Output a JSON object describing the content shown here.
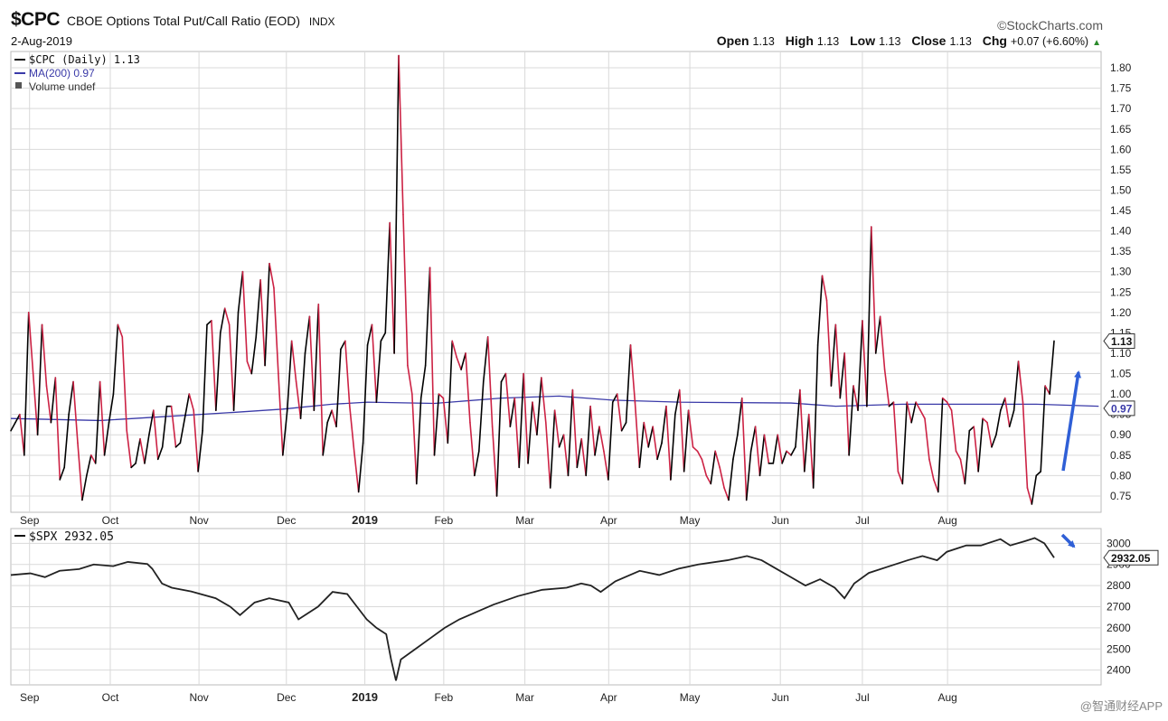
{
  "header": {
    "symbol": "$CPC",
    "description": "CBOE Options Total Put/Call Ratio (EOD)",
    "exchange": "INDX",
    "date": "2-Aug-2019",
    "brand": "©StockCharts.com",
    "open_label": "Open",
    "open": "1.13",
    "high_label": "High",
    "high": "1.13",
    "low_label": "Low",
    "low": "1.13",
    "close_label": "Close",
    "close": "1.13",
    "chg_label": "Chg",
    "chg": "+0.07 (+6.60%)",
    "chg_arrow": "▲"
  },
  "watermark": "@智通财经APP",
  "colors": {
    "up": "#000000",
    "down": "#cc2244",
    "ma": "#3a3aa8",
    "arrow": "#2f5fd6",
    "grid": "#d9d9d9"
  },
  "chart_data": [
    {
      "type": "line",
      "panel": "upper",
      "title": "$CPC CBOE Options Total Put/Call Ratio (EOD)",
      "legend": [
        "$CPC (Daily) 1.13",
        "MA(200) 0.97",
        "Volume undef"
      ],
      "legend_placement": "top-left",
      "x_tick_labels": [
        "Sep",
        "Oct",
        "Nov",
        "Dec",
        "2019",
        "Feb",
        "Mar",
        "Apr",
        "May",
        "Jun",
        "Jul",
        "Aug"
      ],
      "x_ticks": [
        4.2,
        22.3,
        42.2,
        61.8,
        79.4,
        97.1,
        115.3,
        134.1,
        152.3,
        172.6,
        191.0,
        210.1
      ],
      "y_ticks": [
        "1.80",
        "1.75",
        "1.70",
        "1.65",
        "1.60",
        "1.55",
        "1.50",
        "1.45",
        "1.40",
        "1.35",
        "1.30",
        "1.25",
        "1.20",
        "1.15",
        "1.10",
        "1.05",
        "1.00",
        "0.95",
        "0.90",
        "0.85",
        "0.80",
        "0.75"
      ],
      "ylim": [
        0.71,
        1.84
      ],
      "grid": true,
      "last_value_label": "1.13",
      "ma_value_label": "0.97",
      "series": [
        {
          "name": "$CPC (Daily)",
          "style": "up-down colored",
          "values": [
            0.91,
            0.93,
            0.95,
            0.85,
            1.2,
            1.05,
            0.9,
            1.17,
            1.02,
            0.93,
            1.04,
            0.79,
            0.82,
            0.95,
            1.03,
            0.88,
            0.74,
            0.8,
            0.85,
            0.83,
            1.03,
            0.85,
            0.93,
            1.0,
            1.17,
            1.14,
            0.91,
            0.82,
            0.83,
            0.89,
            0.83,
            0.9,
            0.96,
            0.84,
            0.87,
            0.97,
            0.97,
            0.87,
            0.88,
            0.94,
            1.0,
            0.96,
            0.81,
            0.91,
            1.17,
            1.18,
            0.96,
            1.15,
            1.21,
            1.17,
            0.96,
            1.2,
            1.3,
            1.08,
            1.05,
            1.14,
            1.28,
            1.07,
            1.32,
            1.26,
            1.05,
            0.85,
            0.96,
            1.13,
            1.03,
            0.94,
            1.1,
            1.19,
            0.96,
            1.22,
            0.85,
            0.93,
            0.96,
            0.92,
            1.11,
            1.13,
            0.97,
            0.86,
            0.76,
            0.88,
            1.12,
            1.17,
            0.98,
            1.13,
            1.15,
            1.42,
            1.1,
            1.83,
            1.44,
            1.07,
            1.0,
            0.78,
            0.99,
            1.07,
            1.31,
            0.85,
            1.0,
            0.99,
            0.88,
            1.13,
            1.09,
            1.06,
            1.1,
            0.93,
            0.8,
            0.86,
            1.03,
            1.14,
            0.92,
            0.75,
            1.03,
            1.05,
            0.92,
            0.99,
            0.82,
            1.05,
            0.83,
            0.98,
            0.9,
            1.04,
            0.93,
            0.77,
            0.96,
            0.87,
            0.9,
            0.8,
            1.01,
            0.82,
            0.89,
            0.8,
            0.97,
            0.85,
            0.92,
            0.86,
            0.79,
            0.98,
            1.0,
            0.91,
            0.93,
            1.12,
            0.98,
            0.82,
            0.93,
            0.87,
            0.92,
            0.84,
            0.88,
            0.97,
            0.79,
            0.95,
            1.01,
            0.81,
            0.96,
            0.87,
            0.86,
            0.84,
            0.8,
            0.78,
            0.86,
            0.82,
            0.77,
            0.74,
            0.84,
            0.9,
            0.99,
            0.74,
            0.86,
            0.92,
            0.8,
            0.9,
            0.83,
            0.83,
            0.9,
            0.83,
            0.86,
            0.85,
            0.87,
            1.01,
            0.81,
            0.95,
            0.77,
            1.12,
            1.29,
            1.23,
            1.02,
            1.17,
            0.99,
            1.1,
            0.85,
            1.02,
            0.96,
            1.18,
            0.97,
            1.41,
            1.1,
            1.19,
            1.06,
            0.97,
            0.98,
            0.81,
            0.78,
            0.98,
            0.93,
            0.98,
            0.96,
            0.94,
            0.84,
            0.79,
            0.76,
            0.99,
            0.98,
            0.96,
            0.86,
            0.84,
            0.78,
            0.91,
            0.92,
            0.81,
            0.94,
            0.93,
            0.87,
            0.9,
            0.96,
            0.99,
            0.92,
            0.96,
            1.08,
            0.98,
            0.77,
            0.73,
            0.8,
            0.81,
            1.02,
            1.0,
            1.13
          ]
        },
        {
          "name": "MA(200)",
          "points": [
            [
              0,
              0.94
            ],
            [
              20,
              0.935
            ],
            [
              35,
              0.945
            ],
            [
              50,
              0.955
            ],
            [
              61,
              0.963
            ],
            [
              72,
              0.975
            ],
            [
              80,
              0.98
            ],
            [
              95,
              0.977
            ],
            [
              110,
              0.99
            ],
            [
              123,
              0.995
            ],
            [
              135,
              0.985
            ],
            [
              150,
              0.98
            ],
            [
              175,
              0.978
            ],
            [
              185,
              0.97
            ],
            [
              200,
              0.975
            ],
            [
              230,
              0.975
            ],
            [
              244,
              0.97
            ]
          ]
        }
      ]
    },
    {
      "type": "line",
      "panel": "lower",
      "legend": [
        "$SPX 2932.05"
      ],
      "legend_placement": "top-left",
      "x_tick_labels": [
        "Sep",
        "Oct",
        "Nov",
        "Dec",
        "2019",
        "Feb",
        "Mar",
        "Apr",
        "May",
        "Jun",
        "Jul",
        "Aug"
      ],
      "y_ticks": [
        "3000",
        "2900",
        "2800",
        "2700",
        "2600",
        "2500",
        "2400"
      ],
      "ylim": [
        2330,
        3070
      ],
      "grid": true,
      "last_value_label": "2932.05",
      "series": [
        {
          "name": "$SPX",
          "points": [
            [
              0,
              2850
            ],
            [
              4,
              2858
            ],
            [
              7,
              2840
            ],
            [
              10,
              2870
            ],
            [
              14,
              2878
            ],
            [
              17,
              2900
            ],
            [
              21,
              2892
            ],
            [
              24,
              2912
            ],
            [
              28,
              2902
            ],
            [
              29,
              2880
            ],
            [
              31,
              2810
            ],
            [
              33,
              2790
            ],
            [
              37,
              2772
            ],
            [
              42,
              2740
            ],
            [
              45,
              2700
            ],
            [
              47,
              2660
            ],
            [
              50,
              2720
            ],
            [
              53,
              2740
            ],
            [
              57,
              2720
            ],
            [
              59,
              2640
            ],
            [
              63,
              2700
            ],
            [
              66,
              2770
            ],
            [
              69,
              2760
            ],
            [
              71,
              2700
            ],
            [
              73,
              2640
            ],
            [
              75,
              2600
            ],
            [
              77,
              2570
            ],
            [
              78,
              2450
            ],
            [
              79,
              2350
            ],
            [
              80,
              2450
            ],
            [
              83,
              2500
            ],
            [
              86,
              2550
            ],
            [
              89,
              2600
            ],
            [
              92,
              2640
            ],
            [
              96,
              2680
            ],
            [
              99,
              2710
            ],
            [
              104,
              2750
            ],
            [
              109,
              2780
            ],
            [
              114,
              2790
            ],
            [
              117,
              2810
            ],
            [
              119,
              2800
            ],
            [
              121,
              2770
            ],
            [
              124,
              2820
            ],
            [
              129,
              2870
            ],
            [
              133,
              2850
            ],
            [
              137,
              2880
            ],
            [
              141,
              2900
            ],
            [
              147,
              2920
            ],
            [
              151,
              2940
            ],
            [
              154,
              2920
            ],
            [
              157,
              2880
            ],
            [
              160,
              2840
            ],
            [
              163,
              2800
            ],
            [
              166,
              2830
            ],
            [
              169,
              2790
            ],
            [
              171,
              2740
            ],
            [
              173,
              2810
            ],
            [
              176,
              2860
            ],
            [
              180,
              2890
            ],
            [
              184,
              2920
            ],
            [
              187,
              2940
            ],
            [
              190,
              2920
            ],
            [
              192,
              2960
            ],
            [
              196,
              2990
            ],
            [
              199,
              2990
            ],
            [
              203,
              3020
            ],
            [
              205,
              2990
            ],
            [
              208,
              3010
            ],
            [
              210,
              3025
            ],
            [
              212,
              3000
            ],
            [
              214,
              2932
            ]
          ]
        }
      ]
    }
  ]
}
